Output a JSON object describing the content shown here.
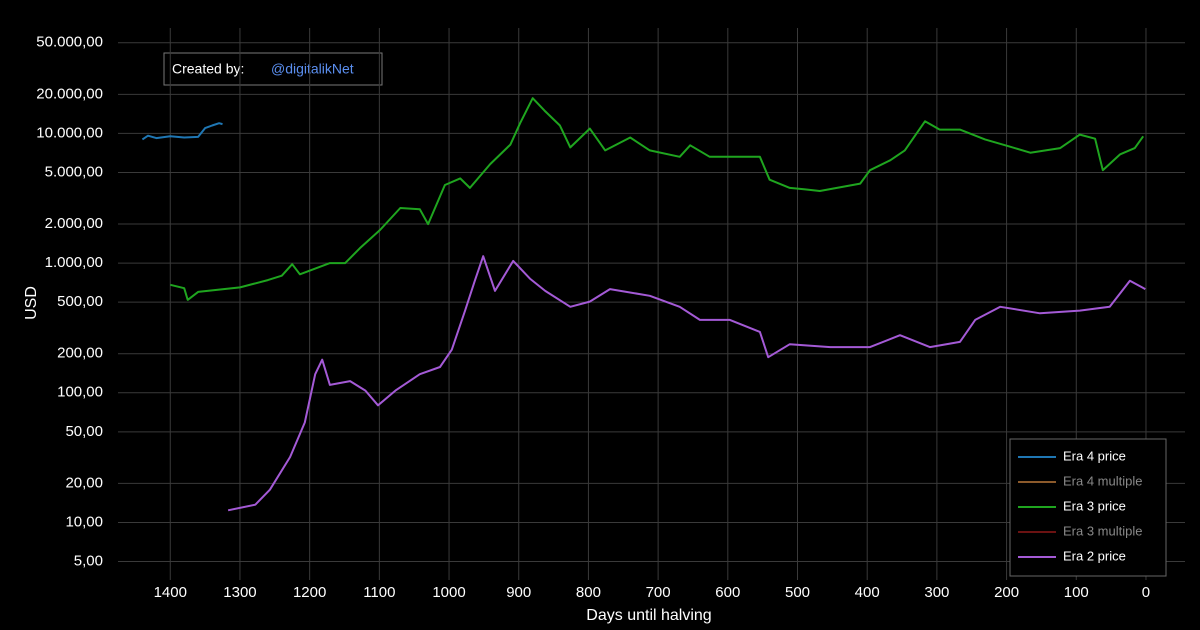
{
  "chart_data": {
    "type": "line",
    "annotation": {
      "label": "Created by:",
      "handle": "@digitalikNet"
    },
    "xlabel": "Days until halving",
    "ylabel": "USD",
    "xlim": [
      1475,
      -56
    ],
    "ylim": [
      3.6,
      65000
    ],
    "log_y": true,
    "grid": true,
    "legend": "bottom-right",
    "xticks": [
      1400,
      1300,
      1200,
      1100,
      1000,
      900,
      800,
      700,
      600,
      500,
      400,
      300,
      200,
      100,
      0
    ],
    "yticks": [
      {
        "value": 5,
        "label": "5,00"
      },
      {
        "value": 10,
        "label": "10,00"
      },
      {
        "value": 20,
        "label": "20,00"
      },
      {
        "value": 50,
        "label": "50,00"
      },
      {
        "value": 100,
        "label": "100,00"
      },
      {
        "value": 200,
        "label": "200,00"
      },
      {
        "value": 500,
        "label": "500,00"
      },
      {
        "value": 1000,
        "label": "1.000,00"
      },
      {
        "value": 2000,
        "label": "2.000,00"
      },
      {
        "value": 5000,
        "label": "5.000,00"
      },
      {
        "value": 10000,
        "label": "10.000,00"
      },
      {
        "value": 20000,
        "label": "20.000,00"
      },
      {
        "value": 50000,
        "label": "50.000,00"
      }
    ],
    "series": [
      {
        "name": "Era 4 price",
        "color": "#1f77b4",
        "visible": true,
        "x": [
          1440,
          1432,
          1420,
          1400,
          1380,
          1360,
          1350,
          1340,
          1330,
          1325
        ],
        "values": [
          9000,
          9600,
          9200,
          9500,
          9300,
          9400,
          11000,
          11500,
          12000,
          11800
        ]
      },
      {
        "name": "Era 4 multiple",
        "color": "#8c5a2b",
        "visible": false,
        "x": [],
        "values": []
      },
      {
        "name": "Era 3 price",
        "color": "#1fa51f",
        "visible": true,
        "x": [
          1400,
          1380,
          1375,
          1360,
          1300,
          1260,
          1240,
          1225,
          1214,
          1171,
          1149,
          1128,
          1099,
          1070,
          1042,
          1030,
          1006,
          984,
          970,
          941,
          912,
          898,
          880,
          863,
          841,
          826,
          798,
          776,
          740,
          712,
          669,
          654,
          626,
          554,
          540,
          511,
          489,
          468,
          410,
          396,
          367,
          346,
          317,
          296,
          267,
          231,
          195,
          166,
          123,
          95,
          73,
          62,
          37,
          16,
          4
        ],
        "values": [
          680,
          640,
          520,
          600,
          650,
          740,
          800,
          980,
          820,
          1000,
          1000,
          1300,
          1800,
          2660,
          2600,
          2000,
          4000,
          4500,
          3800,
          5800,
          8200,
          12000,
          18700,
          15000,
          11500,
          7800,
          10900,
          7400,
          9300,
          7400,
          6600,
          8100,
          6600,
          6600,
          4400,
          3800,
          3700,
          3600,
          4100,
          5200,
          6200,
          7400,
          12400,
          10700,
          10700,
          9000,
          7900,
          7100,
          7700,
          9800,
          9100,
          5200,
          6900,
          7700,
          9500
        ]
      },
      {
        "name": "Era 3 multiple",
        "color": "#6b1212",
        "visible": false,
        "x": [],
        "values": []
      },
      {
        "name": "Era 2 price",
        "color": "#a45ad6",
        "visible": true,
        "x": [
          1317,
          1278,
          1257,
          1228,
          1207,
          1192,
          1182,
          1171,
          1142,
          1120,
          1102,
          1077,
          1042,
          1013,
          996,
          977,
          963,
          951,
          934,
          908,
          884,
          862,
          826,
          798,
          769,
          712,
          669,
          640,
          597,
          554,
          542,
          511,
          453,
          396,
          353,
          310,
          267,
          245,
          209,
          152,
          95,
          52,
          23,
          1
        ],
        "values": [
          12.4,
          13.7,
          17.9,
          32,
          59,
          139,
          180,
          115,
          123,
          104,
          80,
          104,
          139,
          158,
          215,
          430,
          730,
          1130,
          610,
          1040,
          760,
          610,
          460,
          505,
          630,
          560,
          460,
          365,
          365,
          295,
          188,
          237,
          225,
          225,
          278,
          225,
          247,
          365,
          460,
          410,
          430,
          460,
          730,
          630
        ]
      }
    ]
  }
}
